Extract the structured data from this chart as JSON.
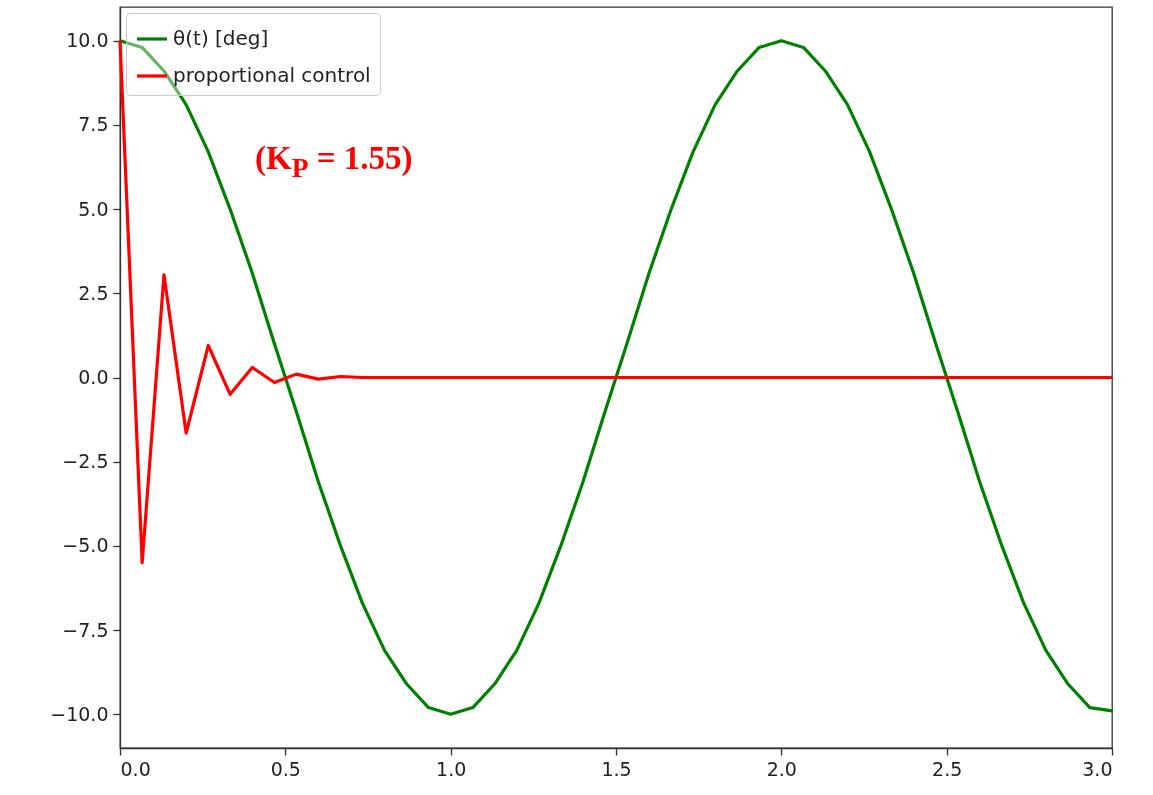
{
  "chart_data": {
    "type": "line",
    "annotations": [
      "(K$_{P}$ = 1.55)"
    ],
    "xlim": [
      0,
      3
    ],
    "xticks": [
      {
        "value": 0,
        "label": "0.0"
      },
      0.5,
      {
        "value": 1,
        "label": "1.0"
      },
      1.5,
      {
        "value": 2,
        "label": "2.0"
      },
      2.5,
      {
        "value": 3,
        "label": "3.0"
      }
    ],
    "ylim": [
      -11,
      11
    ],
    "yticks": [
      {
        "value": -10,
        "label": "−10.0"
      },
      {
        "value": -7.5,
        "label": "−7.5"
      },
      {
        "value": -5,
        "label": "−5.0"
      },
      {
        "value": -2.5,
        "label": "−2.5"
      },
      {
        "value": 0,
        "label": "0.0"
      },
      2.5,
      {
        "value": 5,
        "label": "5.0"
      },
      7.5,
      {
        "value": 10,
        "label": "10.0"
      }
    ],
    "grid": false,
    "legend": "top left",
    "marker": "none",
    "line_style": "solid",
    "series": [
      {
        "name": "θ(t) [deg]",
        "color": "#008000",
        "x": [
          0,
          0.067,
          0.133,
          0.2,
          0.267,
          0.333,
          0.4,
          0.467,
          0.533,
          0.6,
          0.667,
          0.733,
          0.8,
          0.867,
          0.933,
          1.0,
          1.067,
          1.133,
          1.2,
          1.267,
          1.333,
          1.4,
          1.467,
          1.533,
          1.6,
          1.667,
          1.733,
          1.8,
          1.867,
          1.933,
          2.0,
          2.067,
          2.133,
          2.2,
          2.267,
          2.333,
          2.4,
          2.467,
          2.533,
          2.6,
          2.667,
          2.733,
          2.8,
          2.867,
          2.933,
          3.0
        ],
        "values": [
          10.0,
          9.8,
          9.1,
          8.1,
          6.7,
          5.0,
          3.1,
          1.0,
          -1.0,
          -3.1,
          -5.0,
          -6.7,
          -8.1,
          -9.1,
          -9.8,
          -10.0,
          -9.8,
          -9.1,
          -8.1,
          -6.7,
          -5.0,
          -3.1,
          -1.0,
          1.0,
          3.1,
          5.0,
          6.7,
          8.1,
          9.1,
          9.8,
          10.0,
          9.8,
          9.1,
          8.1,
          6.7,
          5.0,
          3.1,
          1.0,
          -1.0,
          -3.1,
          -5.0,
          -6.7,
          -8.1,
          -9.1,
          -9.8,
          -9.9
        ]
      },
      {
        "name": "proportional control",
        "color": "#ff0000",
        "x": [
          0,
          0.067,
          0.133,
          0.2,
          0.267,
          0.333,
          0.4,
          0.467,
          0.533,
          0.6,
          0.667,
          0.733,
          0.8,
          1.0,
          2.0,
          3.0
        ],
        "values": [
          10.0,
          -5.5,
          3.05,
          -1.65,
          0.95,
          -0.5,
          0.3,
          -0.15,
          0.1,
          -0.05,
          0.03,
          0,
          0,
          0,
          0,
          0
        ]
      }
    ]
  }
}
